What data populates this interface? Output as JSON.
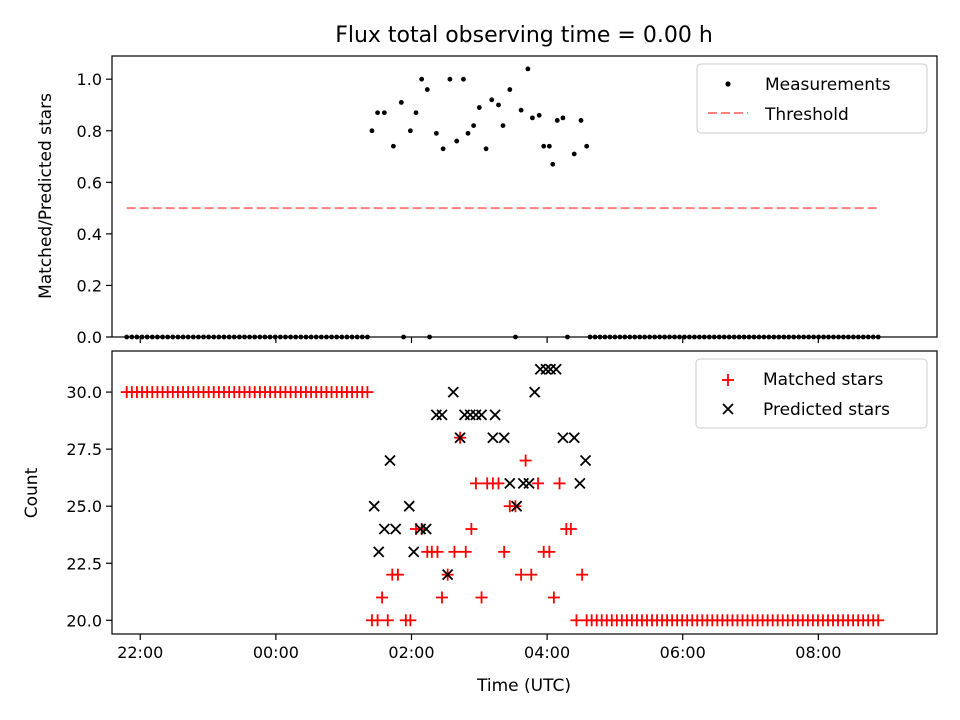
{
  "figure": {
    "title": "Flux total observing time = 0.00 h",
    "xlabel": "Time (UTC)"
  },
  "colors": {
    "measurement": "#000000",
    "threshold": "#ff7f7f",
    "matched": "#ff0000",
    "predicted": "#000000"
  },
  "chart_data": [
    {
      "type": "scatter",
      "ylabel": "Matched/Predicted stars",
      "xlim": [
        "21:35",
        "09:45"
      ],
      "ylim": [
        0,
        1.09
      ],
      "yticks": [
        0.0,
        0.2,
        0.4,
        0.6,
        0.8,
        1.0
      ],
      "ytick_labels": [
        "0.0",
        "0.2",
        "0.4",
        "0.6",
        "0.8",
        "1.0"
      ],
      "xticks": [
        "22:00",
        "00:00",
        "02:00",
        "04:00",
        "06:00",
        "08:00"
      ],
      "xtick_labels": [
        "22:00",
        "00:00",
        "02:00",
        "04:00",
        "06:00",
        "08:00"
      ],
      "grid": false,
      "legend_position": "upper right",
      "legend": [
        "Measurements",
        "Threshold"
      ],
      "series": [
        {
          "name": "Measurements",
          "marker": "dot",
          "points": [
            [
              "01:25",
              0.8
            ],
            [
              "01:30",
              0.87
            ],
            [
              "01:36",
              0.87
            ],
            [
              "01:44",
              0.74
            ],
            [
              "01:51",
              0.91
            ],
            [
              "01:59",
              0.8
            ],
            [
              "02:04",
              0.87
            ],
            [
              "02:09",
              1.0
            ],
            [
              "02:14",
              0.96
            ],
            [
              "02:22",
              0.79
            ],
            [
              "02:28",
              0.73
            ],
            [
              "02:34",
              1.0
            ],
            [
              "02:40",
              0.76
            ],
            [
              "02:46",
              1.0
            ],
            [
              "02:50",
              0.79
            ],
            [
              "02:55",
              0.82
            ],
            [
              "03:00",
              0.89
            ],
            [
              "03:06",
              0.73
            ],
            [
              "03:11",
              0.92
            ],
            [
              "03:17",
              0.9
            ],
            [
              "03:21",
              0.82
            ],
            [
              "03:27",
              0.96
            ],
            [
              "03:37",
              0.88
            ],
            [
              "03:43",
              1.04
            ],
            [
              "03:47",
              0.85
            ],
            [
              "03:53",
              0.86
            ],
            [
              "03:57",
              0.74
            ],
            [
              "04:02",
              0.74
            ],
            [
              "04:05",
              0.67
            ],
            [
              "04:09",
              0.84
            ],
            [
              "04:14",
              0.85
            ],
            [
              "04:24",
              0.71
            ],
            [
              "04:30",
              0.84
            ],
            [
              "04:35",
              0.74
            ],
            [
              "01:53",
              0.0
            ],
            [
              "02:16",
              0.0
            ],
            [
              "03:32",
              0.0
            ],
            [
              "04:18",
              0.0
            ]
          ],
          "zero_runs": [
            {
              "from": "21:48",
              "to": "01:21",
              "count": 48,
              "y": 0.0
            },
            {
              "from": "04:38",
              "to": "08:53",
              "count": 59,
              "y": 0.0
            }
          ]
        },
        {
          "name": "Threshold",
          "marker": "dashed-line",
          "x": [
            "21:48",
            "08:53"
          ],
          "y": [
            0.5,
            0.5
          ]
        }
      ]
    },
    {
      "type": "scatter",
      "ylabel": "Count",
      "xlim": [
        "21:35",
        "09:45"
      ],
      "ylim": [
        19.4,
        31.8
      ],
      "yticks": [
        20.0,
        22.5,
        25.0,
        27.5,
        30.0
      ],
      "ytick_labels": [
        "20.0",
        "22.5",
        "25.0",
        "27.5",
        "30.0"
      ],
      "xticks": [
        "22:00",
        "00:00",
        "02:00",
        "04:00",
        "06:00",
        "08:00"
      ],
      "xtick_labels": [
        "22:00",
        "00:00",
        "02:00",
        "04:00",
        "06:00",
        "08:00"
      ],
      "grid": false,
      "legend_position": "upper right",
      "legend": [
        "Matched stars",
        "Predicted stars"
      ],
      "series": [
        {
          "name": "Matched stars",
          "marker": "plus",
          "points": [
            [
              "01:25",
              20
            ],
            [
              "01:30",
              20
            ],
            [
              "01:34",
              21
            ],
            [
              "01:39",
              20
            ],
            [
              "01:43",
              22
            ],
            [
              "01:48",
              22
            ],
            [
              "01:55",
              20
            ],
            [
              "01:59",
              20
            ],
            [
              "02:04",
              24
            ],
            [
              "02:09",
              24
            ],
            [
              "02:14",
              23
            ],
            [
              "02:18",
              23
            ],
            [
              "02:23",
              23
            ],
            [
              "02:27",
              21
            ],
            [
              "02:32",
              22
            ],
            [
              "02:38",
              23
            ],
            [
              "02:43",
              28
            ],
            [
              "02:48",
              23
            ],
            [
              "02:53",
              24
            ],
            [
              "02:57",
              26
            ],
            [
              "03:02",
              21
            ],
            [
              "03:07",
              26
            ],
            [
              "03:12",
              26
            ],
            [
              "03:17",
              26
            ],
            [
              "03:22",
              23
            ],
            [
              "03:27",
              25
            ],
            [
              "03:32",
              25
            ],
            [
              "03:37",
              22
            ],
            [
              "03:41",
              27
            ],
            [
              "03:46",
              22
            ],
            [
              "03:52",
              26
            ],
            [
              "03:57",
              23
            ],
            [
              "04:02",
              23
            ],
            [
              "04:06",
              21
            ],
            [
              "04:11",
              26
            ],
            [
              "04:17",
              24
            ],
            [
              "04:21",
              24
            ],
            [
              "04:26",
              20
            ],
            [
              "04:31",
              22
            ]
          ],
          "runs": [
            {
              "from": "21:48",
              "to": "01:21",
              "count": 48,
              "y": 30
            },
            {
              "from": "04:35",
              "to": "08:53",
              "count": 59,
              "y": 20
            }
          ]
        },
        {
          "name": "Predicted stars",
          "marker": "x",
          "points": [
            [
              "01:27",
              25
            ],
            [
              "01:31",
              23
            ],
            [
              "01:36",
              24
            ],
            [
              "01:41",
              27
            ],
            [
              "01:46",
              24
            ],
            [
              "01:58",
              25
            ],
            [
              "02:02",
              23
            ],
            [
              "02:08",
              24
            ],
            [
              "02:13",
              24
            ],
            [
              "02:22",
              29
            ],
            [
              "02:27",
              29
            ],
            [
              "02:32",
              22
            ],
            [
              "02:37",
              30
            ],
            [
              "02:43",
              28
            ],
            [
              "02:47",
              29
            ],
            [
              "02:52",
              29
            ],
            [
              "02:57",
              29
            ],
            [
              "03:02",
              29
            ],
            [
              "03:12",
              28
            ],
            [
              "03:14",
              29
            ],
            [
              "03:22",
              28
            ],
            [
              "03:27",
              26
            ],
            [
              "03:33",
              25
            ],
            [
              "03:39",
              26
            ],
            [
              "03:44",
              26
            ],
            [
              "03:49",
              30
            ],
            [
              "03:54",
              31
            ],
            [
              "03:59",
              31
            ],
            [
              "04:03",
              31
            ],
            [
              "04:08",
              31
            ],
            [
              "04:14",
              28
            ],
            [
              "04:24",
              28
            ],
            [
              "04:29",
              26
            ],
            [
              "04:34",
              27
            ]
          ]
        }
      ]
    }
  ]
}
